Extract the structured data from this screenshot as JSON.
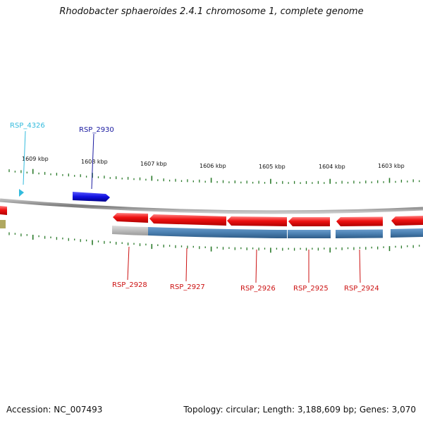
{
  "title": "Rhodobacter sphaeroides 2.4.1 chromosome 1, complete genome",
  "footer": {
    "accession": "Accession: NC_007493",
    "summary": "Topology: circular; Length: 3,188,609 bp; Genes: 3,070"
  },
  "colors": {
    "backbone": "#8a8a8a",
    "forward_gene": "#1010e0",
    "reverse_gene": "#ee1111",
    "ticks": "#2a7a2a",
    "feature_track": "#4a7fb0",
    "feature_gray": "#c0c0c0",
    "feature_olive": "#b0a860",
    "label_red": "#cc1111",
    "label_cyan": "#33bbdd",
    "label_blue": "#1a1aa0"
  },
  "scale": {
    "ticks_kbp": [
      "1609 kbp",
      "1608 kbp",
      "1607 kbp",
      "1606 kbp",
      "1605 kbp",
      "1604 kbp",
      "1603 kbp"
    ]
  },
  "gene_labels": [
    {
      "name": "RSP_4326",
      "color": "cyan"
    },
    {
      "name": "RSP_2930",
      "color": "blue"
    },
    {
      "name": "RSP_2928",
      "color": "red"
    },
    {
      "name": "RSP_2927",
      "color": "red"
    },
    {
      "name": "RSP_2926",
      "color": "red"
    },
    {
      "name": "RSP_2925",
      "color": "red"
    },
    {
      "name": "RSP_2924",
      "color": "red"
    }
  ]
}
